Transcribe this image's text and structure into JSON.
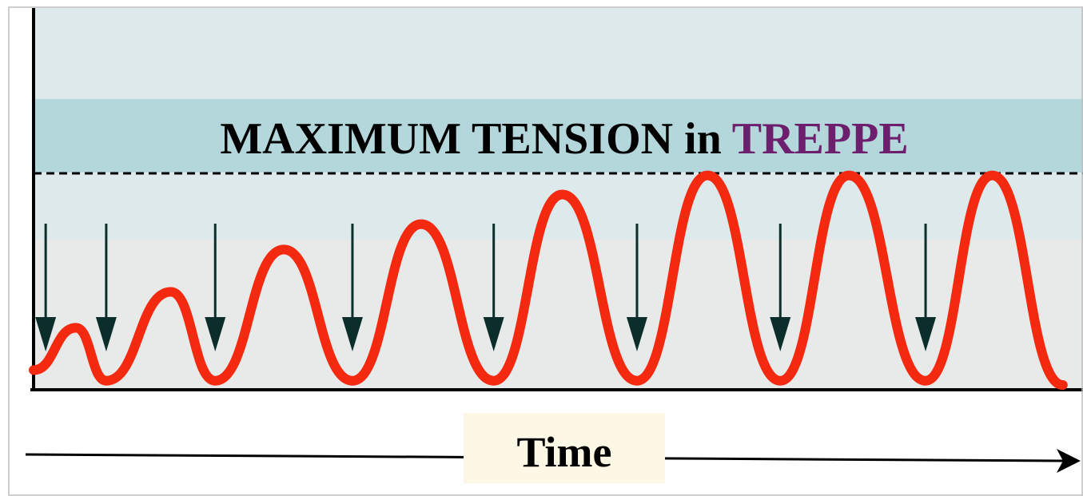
{
  "title": {
    "prefix": "MAXIMUM TENSION in ",
    "highlight": "TREPPE"
  },
  "colors": {
    "background": "#dde9ea",
    "title_band": "#b4d7dc",
    "curve": "#f42a10",
    "arrow": "#0c2e2a",
    "highlight": "#6d1f6d",
    "axis": "#000000",
    "time_box": "#fdf7e5",
    "lower_fill": "#fbeeea"
  },
  "chart_data": {
    "type": "line",
    "title": "MAXIMUM TENSION in TREPPE",
    "xlabel": "Time",
    "ylabel": "",
    "grid": false,
    "legend": "none",
    "description_of_series": "tension of successive twitches; each twitch rises from baseline to a peak and relaxes to baseline",
    "stimulus_times": [
      0.6,
      3.6,
      9.0,
      15.8,
      22.8,
      29.9,
      37.0,
      44.2
    ],
    "twitch_peaks": [
      {
        "t": 2.1,
        "tension": 0.27
      },
      {
        "t": 6.8,
        "tension": 0.44
      },
      {
        "t": 12.4,
        "tension": 0.64
      },
      {
        "t": 19.2,
        "tension": 0.76
      },
      {
        "t": 26.2,
        "tension": 0.9
      },
      {
        "t": 33.4,
        "tension": 0.99
      },
      {
        "t": 40.4,
        "tension": 0.99
      },
      {
        "t": 47.5,
        "tension": 0.99
      }
    ],
    "twitch_troughs": [
      {
        "t": 0.0,
        "tension": 0.07
      },
      {
        "t": 3.6,
        "tension": 0.02
      },
      {
        "t": 9.0,
        "tension": 0.02
      },
      {
        "t": 15.8,
        "tension": 0.02
      },
      {
        "t": 22.8,
        "tension": 0.02
      },
      {
        "t": 29.9,
        "tension": 0.02
      },
      {
        "t": 37.0,
        "tension": 0.02
      },
      {
        "t": 44.2,
        "tension": 0.02
      },
      {
        "t": 51.0,
        "tension": 0.0
      }
    ],
    "maximum_tension_level": 1.0,
    "xlim": [
      0,
      52
    ],
    "ylim": [
      0,
      1.0
    ]
  }
}
